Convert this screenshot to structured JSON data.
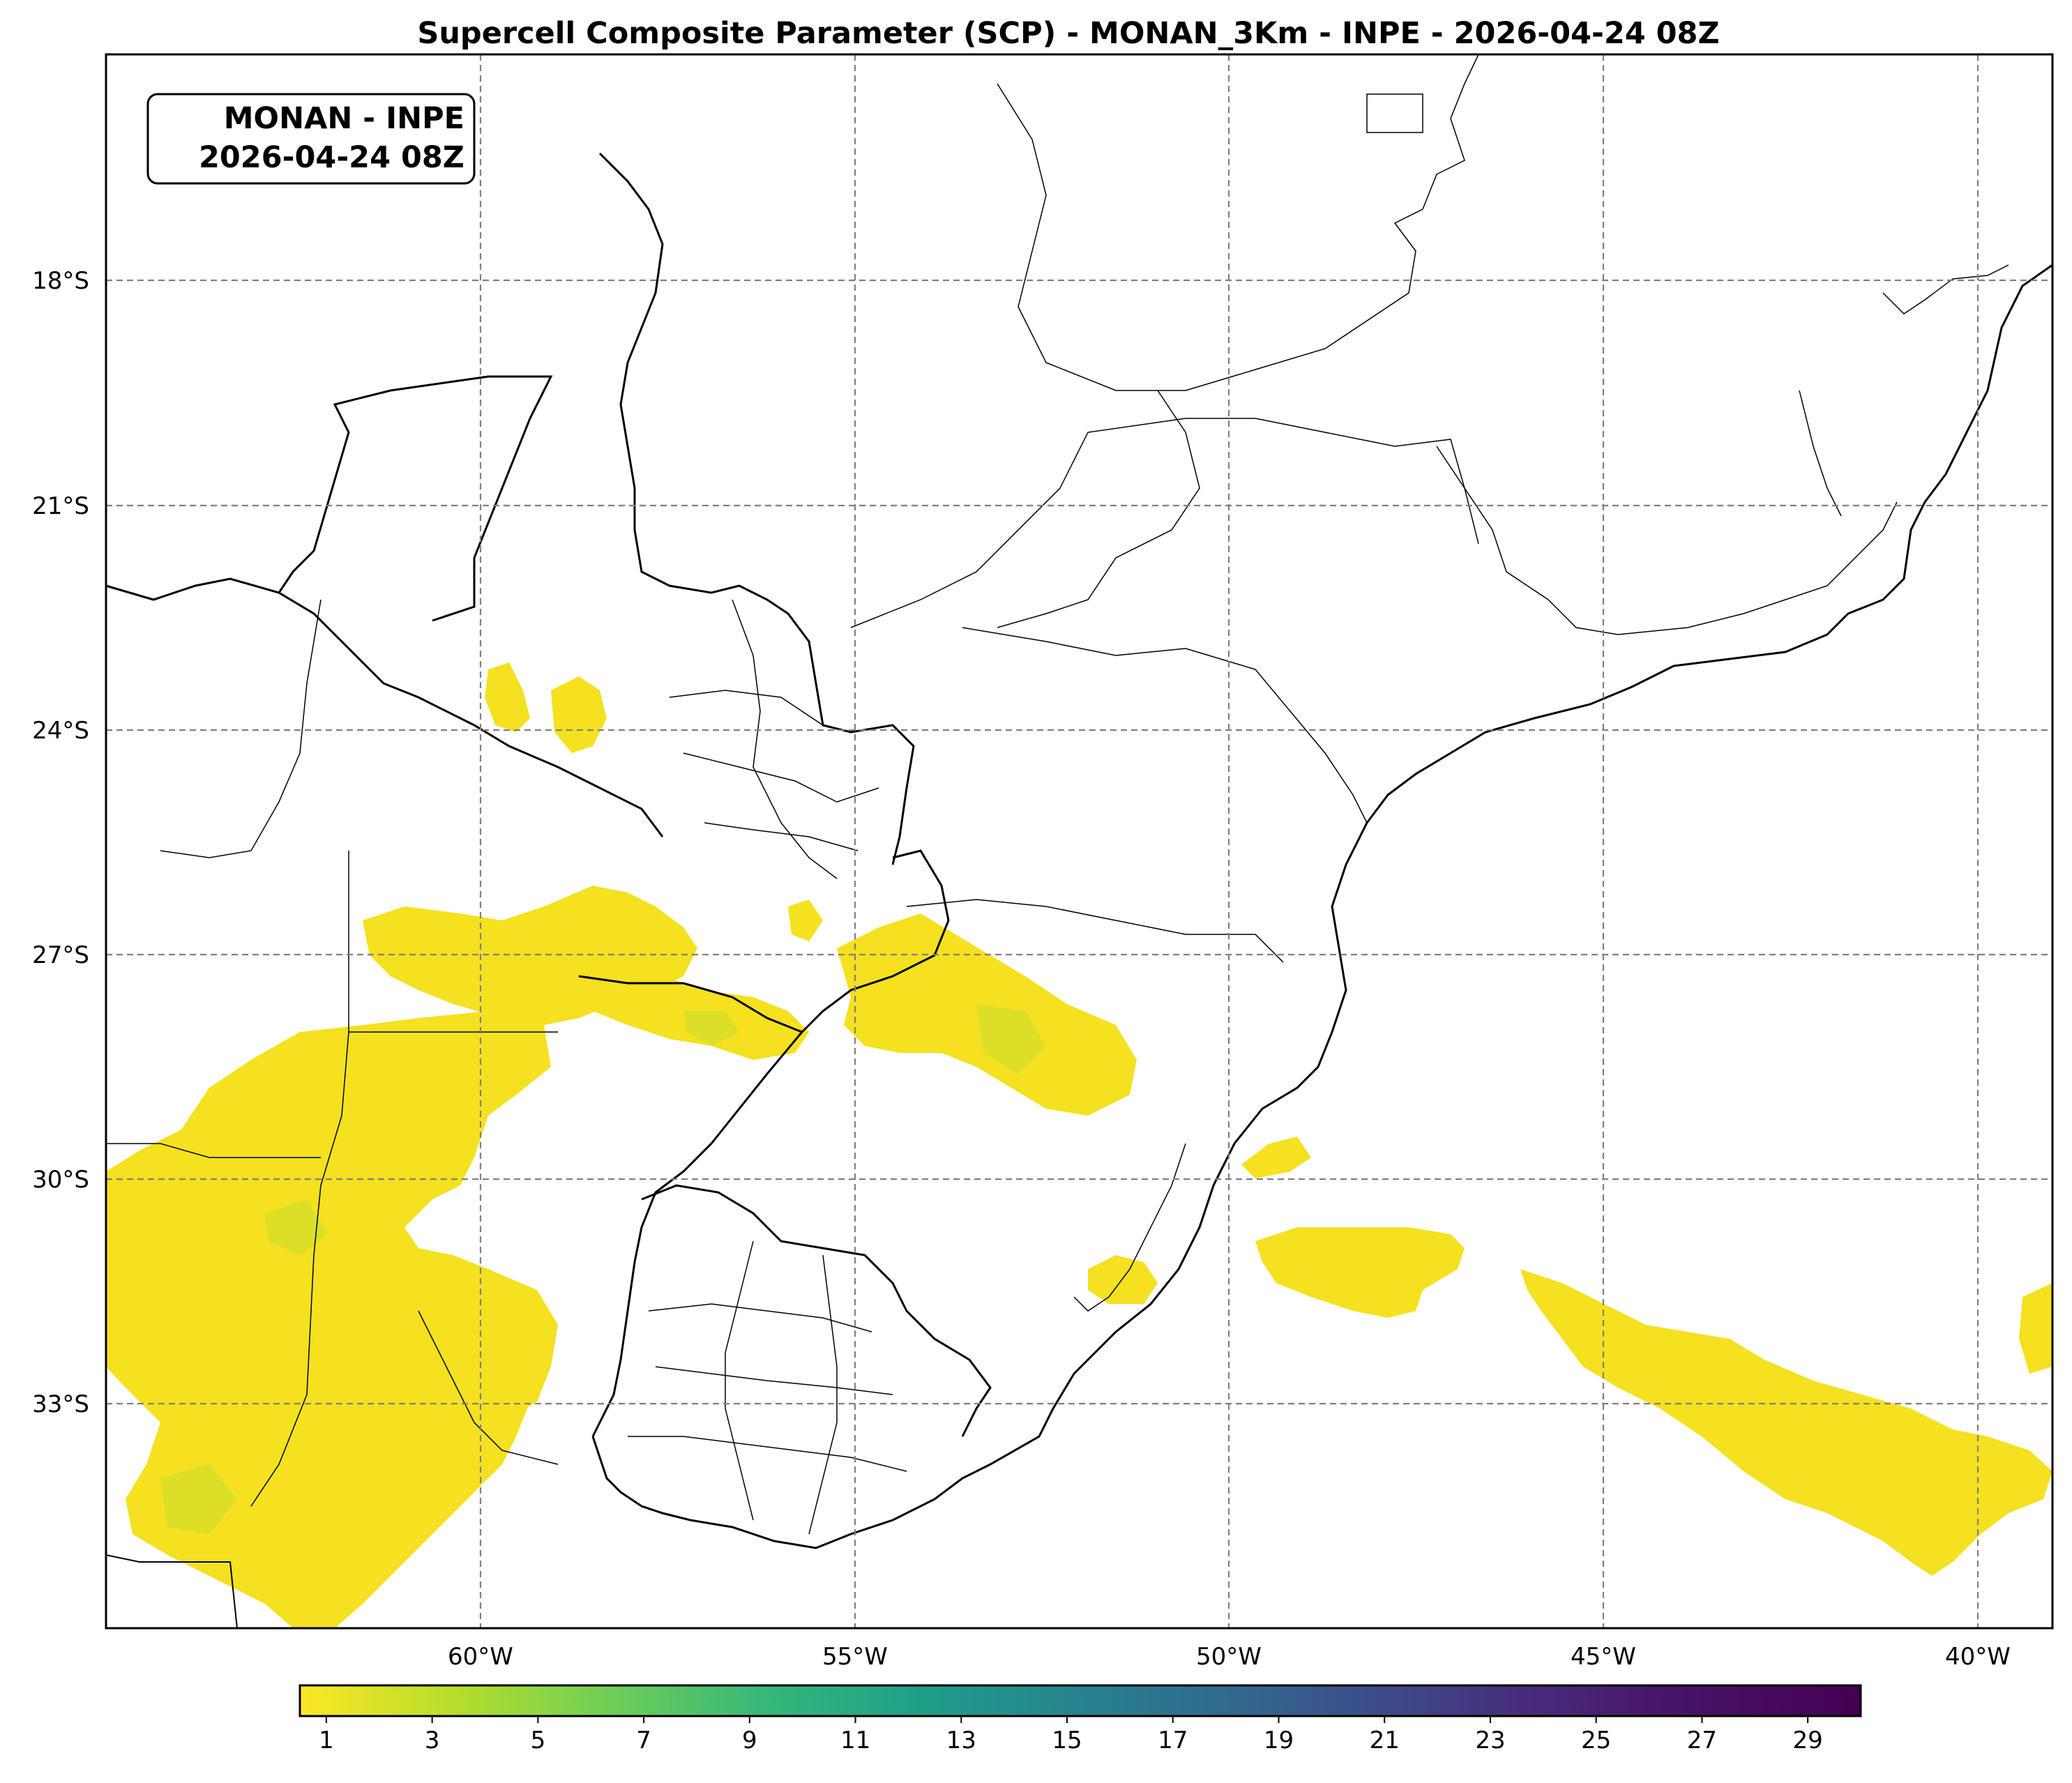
{
  "title": "Supercell Composite Parameter (SCP) - MONAN_3Km - INPE - 2026-04-24 08Z",
  "info_box": {
    "line1": "MONAN - INPE",
    "line2": "2026-04-24 08Z"
  },
  "map": {
    "lon_range": [
      -65.0,
      -39.0
    ],
    "lat_range": [
      -36.0,
      -15.0
    ],
    "lat_ticks": [
      {
        "value": -18,
        "label": "18°S"
      },
      {
        "value": -21,
        "label": "21°S"
      },
      {
        "value": -24,
        "label": "24°S"
      },
      {
        "value": -27,
        "label": "27°S"
      },
      {
        "value": -30,
        "label": "30°S"
      },
      {
        "value": -33,
        "label": "33°S"
      }
    ],
    "lon_ticks": [
      {
        "value": -60,
        "label": "60°W"
      },
      {
        "value": -55,
        "label": "55°W"
      },
      {
        "value": -50,
        "label": "50°W"
      },
      {
        "value": -45,
        "label": "45°W"
      },
      {
        "value": -40,
        "label": "40°W"
      }
    ],
    "gridlines": "dashed gray"
  },
  "colorbar": {
    "colormap": "viridis_r",
    "range": [
      0.5,
      30.0
    ],
    "ticks": [
      "1",
      "3",
      "5",
      "7",
      "9",
      "11",
      "13",
      "15",
      "17",
      "19",
      "21",
      "23",
      "25",
      "27",
      "29"
    ]
  },
  "colors": {
    "low": "#f5e11f",
    "mid": "#a8db34",
    "high": "#440154"
  }
}
